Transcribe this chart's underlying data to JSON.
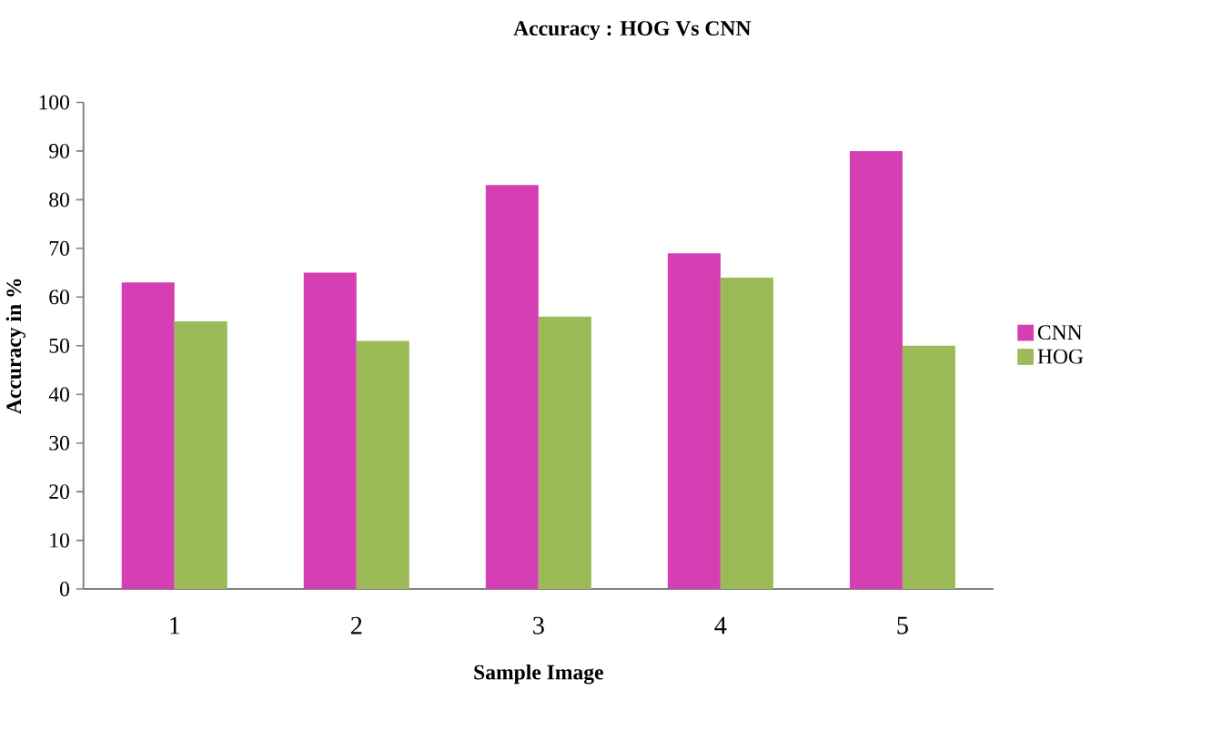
{
  "chart_data": {
    "type": "bar",
    "title": "Accuracy : HOG Vs CNN",
    "xlabel": "Sample Image",
    "ylabel": "Accuracy in %",
    "categories": [
      "1",
      "2",
      "3",
      "4",
      "5"
    ],
    "series": [
      {
        "name": "CNN",
        "color": "#d63fb3",
        "values": [
          63,
          65,
          83,
          69,
          90
        ]
      },
      {
        "name": "HOG",
        "color": "#9bbb59",
        "values": [
          55,
          51,
          56,
          64,
          50
        ]
      }
    ],
    "ylim": [
      0,
      100
    ],
    "yticks": [
      0,
      10,
      20,
      30,
      40,
      50,
      60,
      70,
      80,
      90,
      100
    ],
    "legend": "right"
  }
}
